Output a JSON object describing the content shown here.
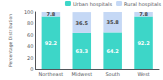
{
  "chart_data": {
    "type": "bar",
    "stacked": true,
    "categories": [
      "Northeast",
      "Midwest",
      "South",
      "West"
    ],
    "series": [
      {
        "name": "Urban hospitals",
        "color": "#3dd6c8",
        "values": [
          92.2,
          63.3,
          64.2,
          92.2
        ]
      },
      {
        "name": "Rural hospitals",
        "color": "#c5d8f5",
        "values": [
          7.8,
          36.5,
          35.8,
          7.8
        ]
      }
    ],
    "ylabel": "Percentage Distribution",
    "ylim": [
      0,
      100
    ],
    "yticks": [
      0,
      20,
      40,
      60,
      80,
      100
    ],
    "grid": false,
    "legend": "upper right",
    "data_labels": true
  }
}
